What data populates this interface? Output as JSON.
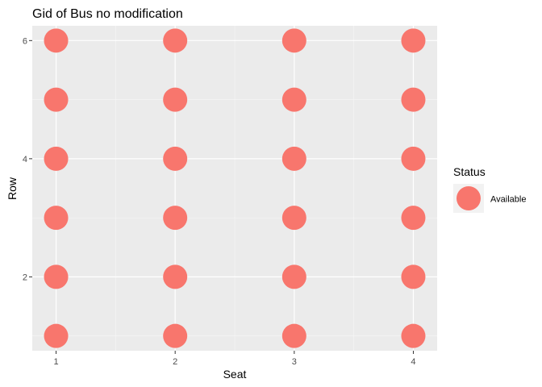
{
  "chart_data": {
    "type": "scatter",
    "title": "Gid of Bus no modification",
    "xlabel": "Seat",
    "ylabel": "Row",
    "x_ticks": [
      1,
      2,
      3,
      4
    ],
    "y_ticks": [
      2,
      4,
      6
    ],
    "xlim": [
      0.8,
      4.2
    ],
    "ylim": [
      0.75,
      6.25
    ],
    "grid": true,
    "legend": {
      "title": "Status",
      "placement": "right",
      "entries": [
        {
          "label": "Available",
          "color": "#F8766D"
        }
      ]
    },
    "series": [
      {
        "name": "Available",
        "color": "#F8766D",
        "points": [
          {
            "x": 1,
            "y": 1
          },
          {
            "x": 1,
            "y": 2
          },
          {
            "x": 1,
            "y": 3
          },
          {
            "x": 1,
            "y": 4
          },
          {
            "x": 1,
            "y": 5
          },
          {
            "x": 1,
            "y": 6
          },
          {
            "x": 2,
            "y": 1
          },
          {
            "x": 2,
            "y": 2
          },
          {
            "x": 2,
            "y": 3
          },
          {
            "x": 2,
            "y": 4
          },
          {
            "x": 2,
            "y": 5
          },
          {
            "x": 2,
            "y": 6
          },
          {
            "x": 3,
            "y": 1
          },
          {
            "x": 3,
            "y": 2
          },
          {
            "x": 3,
            "y": 3
          },
          {
            "x": 3,
            "y": 4
          },
          {
            "x": 3,
            "y": 5
          },
          {
            "x": 3,
            "y": 6
          },
          {
            "x": 4,
            "y": 1
          },
          {
            "x": 4,
            "y": 2
          },
          {
            "x": 4,
            "y": 3
          },
          {
            "x": 4,
            "y": 4
          },
          {
            "x": 4,
            "y": 5
          },
          {
            "x": 4,
            "y": 6
          }
        ]
      }
    ]
  }
}
